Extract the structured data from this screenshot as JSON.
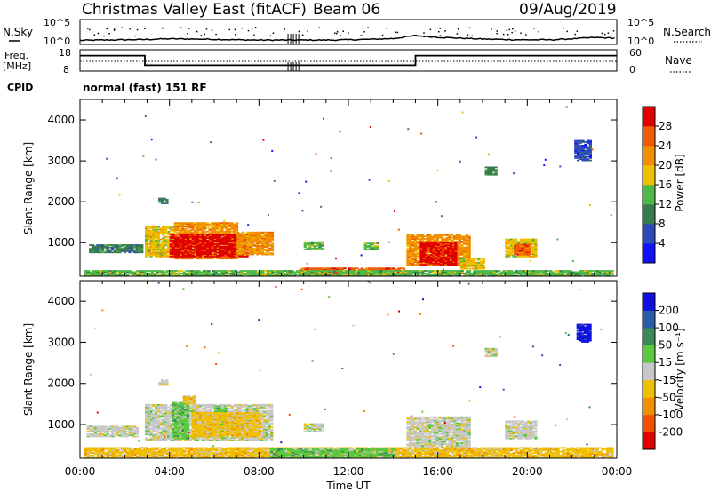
{
  "header": {
    "station": "Christmas Valley East (fitACF)",
    "beam": "Beam 06",
    "date": "09/Aug/2019"
  },
  "panels": {
    "nsky_label": "N.Sky",
    "nsearch_label": "N.Search",
    "freq_label_line1": "Freq.",
    "freq_label_line2": "[MHz]",
    "nave_label": "Nave",
    "cpid_label": "CPID",
    "cpid_text": "normal (fast) 151 RF",
    "noise_ticks_left": [
      "10^5",
      "10^0"
    ],
    "noise_ticks_right": [
      "10^5",
      "10^0"
    ],
    "freq_ticks": [
      "18",
      "8"
    ],
    "nave_ticks": [
      "60",
      "0"
    ]
  },
  "chart_data": [
    {
      "type": "heatmap",
      "name": "power",
      "ylabel": "Slant Range [km]",
      "yticks": [
        "1000",
        "2000",
        "3000",
        "4000"
      ],
      "ylim": [
        180,
        4500
      ],
      "xlim": [
        0,
        24
      ],
      "colorbar_label": "Power [dB]",
      "colorbar_ticks": [
        "4",
        "8",
        "12",
        "16",
        "20",
        "24",
        "28"
      ],
      "colorbar_colors": [
        "#1010ff",
        "#2c4bb8",
        "#3a7a50",
        "#4fb848",
        "#f0c000",
        "#f09000",
        "#f05a00",
        "#e00000"
      ],
      "regions": [
        {
          "t0": 2.9,
          "t1": 4.2,
          "r0": 650,
          "r1": 1400,
          "level": 4
        },
        {
          "t0": 4.2,
          "t1": 7.0,
          "r0": 600,
          "r1": 1500,
          "level": 5
        },
        {
          "t0": 4.0,
          "t1": 7.5,
          "r0": 650,
          "r1": 1200,
          "level": 7
        },
        {
          "t0": 7.0,
          "t1": 8.6,
          "r0": 700,
          "r1": 1250,
          "level": 5
        },
        {
          "t0": 0.4,
          "t1": 2.8,
          "r0": 750,
          "r1": 950,
          "level": 2
        },
        {
          "t0": 10.0,
          "t1": 10.8,
          "r0": 820,
          "r1": 1020,
          "level": 3
        },
        {
          "t0": 12.7,
          "t1": 13.3,
          "r0": 820,
          "r1": 1000,
          "level": 3
        },
        {
          "t0": 14.6,
          "t1": 17.4,
          "r0": 450,
          "r1": 1200,
          "level": 5
        },
        {
          "t0": 15.2,
          "t1": 16.8,
          "r0": 450,
          "r1": 1000,
          "level": 7
        },
        {
          "t0": 19.0,
          "t1": 20.4,
          "r0": 650,
          "r1": 1100,
          "level": 4
        },
        {
          "t0": 19.4,
          "t1": 20.1,
          "r0": 700,
          "r1": 950,
          "level": 6
        },
        {
          "t0": 18.1,
          "t1": 18.6,
          "r0": 2650,
          "r1": 2850,
          "level": 2
        },
        {
          "t0": 22.1,
          "t1": 22.8,
          "r0": 3000,
          "r1": 3500,
          "level": 1
        },
        {
          "t0": 3.5,
          "t1": 3.9,
          "r0": 1950,
          "r1": 2100,
          "level": 2
        },
        {
          "t0": 9.8,
          "t1": 14.5,
          "r0": 180,
          "r1": 380,
          "level": 6
        },
        {
          "t0": 0.2,
          "t1": 23.8,
          "r0": 180,
          "r1": 330,
          "level": 3
        },
        {
          "t0": 17.0,
          "t1": 18.0,
          "r0": 350,
          "r1": 600,
          "level": 4
        }
      ]
    },
    {
      "type": "heatmap",
      "name": "velocity",
      "ylabel": "Slant Range [km]",
      "yticks": [
        "1000",
        "2000",
        "3000",
        "4000"
      ],
      "ylim": [
        180,
        4500
      ],
      "xlim": [
        0,
        24
      ],
      "xticks": [
        "00:00",
        "04:00",
        "08:00",
        "12:00",
        "16:00",
        "20:00",
        "00:00"
      ],
      "xlabel": "Time UT",
      "colorbar_label": "Velocity [m s⁻¹]",
      "colorbar_ticks": [
        "200",
        "100",
        "50",
        "15",
        "-15",
        "-50",
        "-100",
        "-200"
      ],
      "colorbar_colors": [
        "#1010e0",
        "#2a5aa8",
        "#3a8a58",
        "#5cc840",
        "#c8c8c8",
        "#f0c000",
        "#f09000",
        "#f05000",
        "#e00000"
      ],
      "regions": [
        {
          "t0": 2.9,
          "t1": 8.6,
          "r0": 600,
          "r1": 1500,
          "level": 4
        },
        {
          "t0": 4.1,
          "t1": 4.8,
          "r0": 650,
          "r1": 1550,
          "level": 3
        },
        {
          "t0": 6.0,
          "t1": 6.5,
          "r0": 700,
          "r1": 1400,
          "level": 3
        },
        {
          "t0": 5.0,
          "t1": 8.0,
          "r0": 700,
          "r1": 1300,
          "level": 5
        },
        {
          "t0": 4.6,
          "t1": 5.1,
          "r0": 1500,
          "r1": 1700,
          "level": 5
        },
        {
          "t0": 10.0,
          "t1": 10.8,
          "r0": 820,
          "r1": 1020,
          "level": 4
        },
        {
          "t0": 14.6,
          "t1": 17.4,
          "r0": 450,
          "r1": 1200,
          "level": 4
        },
        {
          "t0": 19.0,
          "t1": 20.4,
          "r0": 650,
          "r1": 1100,
          "level": 4
        },
        {
          "t0": 18.1,
          "t1": 18.6,
          "r0": 2650,
          "r1": 2850,
          "level": 4
        },
        {
          "t0": 22.2,
          "t1": 22.8,
          "r0": 3000,
          "r1": 3450,
          "level": 0
        },
        {
          "t0": 3.5,
          "t1": 3.9,
          "r0": 1950,
          "r1": 2100,
          "level": 4
        },
        {
          "t0": 0.2,
          "t1": 23.8,
          "r0": 180,
          "r1": 450,
          "level": 5
        },
        {
          "t0": 8.5,
          "t1": 14.0,
          "r0": 180,
          "r1": 400,
          "level": 3
        },
        {
          "t0": 0.3,
          "t1": 2.6,
          "r0": 700,
          "r1": 950,
          "level": 4
        }
      ]
    }
  ],
  "noise_series": {
    "t": [
      0,
      1,
      2,
      3,
      4,
      5,
      6,
      7,
      8,
      9,
      10,
      11,
      12,
      13,
      14,
      15,
      16,
      17,
      18,
      19,
      20,
      21,
      22,
      23,
      24
    ],
    "value": [
      0.18,
      0.2,
      0.22,
      0.25,
      0.3,
      0.28,
      0.26,
      0.22,
      0.2,
      0.2,
      0.2,
      0.2,
      0.22,
      0.26,
      0.32,
      0.55,
      0.42,
      0.35,
      0.28,
      0.24,
      0.22,
      0.22,
      0.3,
      0.4,
      0.35
    ]
  },
  "freq_series": {
    "segments": [
      [
        0,
        2.9,
        0.8
      ],
      [
        2.9,
        15.0,
        0.2
      ],
      [
        15.0,
        24,
        0.8
      ]
    ]
  }
}
